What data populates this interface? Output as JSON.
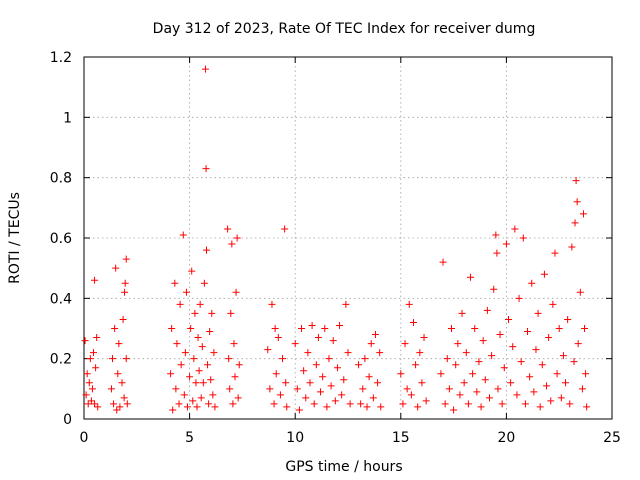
{
  "chart_data": {
    "type": "scatter",
    "title": "Day 312 of 2023, Rate Of TEC Index for receiver dumg",
    "xlabel": "GPS time / hours",
    "ylabel": "ROTI / TECUs",
    "xlim": [
      0,
      25
    ],
    "ylim": [
      0,
      1.2
    ],
    "xticks": [
      0,
      5,
      10,
      15,
      20,
      25
    ],
    "xtick_labels": [
      "0",
      "5",
      "10",
      "15",
      "20",
      "25"
    ],
    "yticks": [
      0,
      0.2,
      0.4,
      0.6,
      0.8,
      1,
      1.2
    ],
    "ytick_labels": [
      "0",
      "0.2",
      "0.4",
      "0.6",
      "0.8",
      "1",
      "1.2"
    ],
    "grid": true,
    "marker": "+",
    "color": "#ff0000",
    "series": [
      {
        "name": "ROTI",
        "points": [
          [
            0.05,
            0.26
          ],
          [
            0.1,
            0.08
          ],
          [
            0.15,
            0.15
          ],
          [
            0.2,
            0.05
          ],
          [
            0.25,
            0.12
          ],
          [
            0.3,
            0.2
          ],
          [
            0.35,
            0.06
          ],
          [
            0.4,
            0.1
          ],
          [
            0.45,
            0.22
          ],
          [
            0.5,
            0.05
          ],
          [
            0.55,
            0.17
          ],
          [
            0.6,
            0.27
          ],
          [
            0.65,
            0.04
          ],
          [
            0.5,
            0.46
          ],
          [
            1.3,
            0.1
          ],
          [
            1.35,
            0.2
          ],
          [
            1.4,
            0.05
          ],
          [
            1.45,
            0.3
          ],
          [
            1.5,
            0.5
          ],
          [
            1.55,
            0.03
          ],
          [
            1.6,
            0.15
          ],
          [
            1.65,
            0.25
          ],
          [
            1.7,
            0.04
          ],
          [
            1.8,
            0.12
          ],
          [
            1.85,
            0.33
          ],
          [
            1.9,
            0.07
          ],
          [
            1.95,
            0.45
          ],
          [
            2.0,
            0.2
          ],
          [
            2.0,
            0.53
          ],
          [
            2.05,
            0.05
          ],
          [
            1.92,
            0.42
          ],
          [
            4.1,
            0.15
          ],
          [
            4.15,
            0.3
          ],
          [
            4.2,
            0.03
          ],
          [
            4.3,
            0.45
          ],
          [
            4.35,
            0.1
          ],
          [
            4.4,
            0.25
          ],
          [
            4.5,
            0.05
          ],
          [
            4.55,
            0.38
          ],
          [
            4.6,
            0.18
          ],
          [
            4.7,
            0.61
          ],
          [
            4.75,
            0.08
          ],
          [
            4.8,
            0.22
          ],
          [
            4.85,
            0.42
          ],
          [
            4.9,
            0.04
          ],
          [
            5.0,
            0.14
          ],
          [
            5.05,
            0.3
          ],
          [
            5.1,
            0.49
          ],
          [
            5.15,
            0.06
          ],
          [
            5.2,
            0.2
          ],
          [
            5.25,
            0.35
          ],
          [
            5.3,
            0.12
          ],
          [
            5.35,
            0.04
          ],
          [
            5.4,
            0.27
          ],
          [
            5.45,
            0.16
          ],
          [
            5.5,
            0.38
          ],
          [
            5.55,
            0.07
          ],
          [
            5.6,
            0.24
          ],
          [
            5.65,
            0.12
          ],
          [
            5.7,
            0.45
          ],
          [
            5.75,
            1.16
          ],
          [
            5.78,
            0.83
          ],
          [
            5.8,
            0.56
          ],
          [
            5.85,
            0.18
          ],
          [
            5.9,
            0.05
          ],
          [
            5.95,
            0.29
          ],
          [
            6.0,
            0.13
          ],
          [
            6.05,
            0.35
          ],
          [
            6.1,
            0.08
          ],
          [
            6.15,
            0.22
          ],
          [
            6.2,
            0.04
          ],
          [
            6.8,
            0.63
          ],
          [
            6.85,
            0.2
          ],
          [
            6.9,
            0.1
          ],
          [
            6.95,
            0.35
          ],
          [
            7.0,
            0.58
          ],
          [
            7.05,
            0.05
          ],
          [
            7.1,
            0.25
          ],
          [
            7.15,
            0.14
          ],
          [
            7.2,
            0.42
          ],
          [
            7.25,
            0.6
          ],
          [
            7.3,
            0.07
          ],
          [
            7.35,
            0.18
          ],
          [
            8.7,
            0.23
          ],
          [
            8.8,
            0.1
          ],
          [
            8.9,
            0.38
          ],
          [
            9.0,
            0.05
          ],
          [
            9.05,
            0.3
          ],
          [
            9.1,
            0.15
          ],
          [
            9.2,
            0.27
          ],
          [
            9.3,
            0.08
          ],
          [
            9.4,
            0.2
          ],
          [
            9.5,
            0.63
          ],
          [
            9.55,
            0.12
          ],
          [
            9.6,
            0.04
          ],
          [
            10.0,
            0.25
          ],
          [
            10.1,
            0.1
          ],
          [
            10.2,
            0.03
          ],
          [
            10.3,
            0.3
          ],
          [
            10.4,
            0.16
          ],
          [
            10.5,
            0.07
          ],
          [
            10.6,
            0.22
          ],
          [
            10.7,
            0.12
          ],
          [
            10.8,
            0.31
          ],
          [
            10.9,
            0.05
          ],
          [
            11.0,
            0.18
          ],
          [
            11.1,
            0.27
          ],
          [
            11.2,
            0.09
          ],
          [
            11.3,
            0.14
          ],
          [
            11.4,
            0.3
          ],
          [
            11.5,
            0.04
          ],
          [
            11.6,
            0.2
          ],
          [
            11.7,
            0.11
          ],
          [
            11.8,
            0.26
          ],
          [
            11.9,
            0.06
          ],
          [
            12.0,
            0.17
          ],
          [
            12.1,
            0.31
          ],
          [
            12.2,
            0.08
          ],
          [
            12.3,
            0.13
          ],
          [
            12.4,
            0.38
          ],
          [
            12.5,
            0.22
          ],
          [
            12.6,
            0.05
          ],
          [
            13.0,
            0.18
          ],
          [
            13.1,
            0.05
          ],
          [
            13.2,
            0.1
          ],
          [
            13.3,
            0.2
          ],
          [
            13.4,
            0.04
          ],
          [
            13.5,
            0.14
          ],
          [
            13.6,
            0.25
          ],
          [
            13.7,
            0.07
          ],
          [
            13.8,
            0.28
          ],
          [
            13.9,
            0.12
          ],
          [
            14.0,
            0.22
          ],
          [
            14.05,
            0.04
          ],
          [
            15.0,
            0.15
          ],
          [
            15.1,
            0.05
          ],
          [
            15.2,
            0.25
          ],
          [
            15.3,
            0.1
          ],
          [
            15.4,
            0.38
          ],
          [
            15.5,
            0.08
          ],
          [
            15.6,
            0.32
          ],
          [
            15.7,
            0.18
          ],
          [
            15.8,
            0.04
          ],
          [
            15.9,
            0.22
          ],
          [
            16.0,
            0.12
          ],
          [
            16.1,
            0.27
          ],
          [
            16.2,
            0.06
          ],
          [
            16.9,
            0.15
          ],
          [
            17.0,
            0.52
          ],
          [
            17.1,
            0.05
          ],
          [
            17.2,
            0.2
          ],
          [
            17.3,
            0.1
          ],
          [
            17.4,
            0.3
          ],
          [
            17.5,
            0.03
          ],
          [
            17.6,
            0.18
          ],
          [
            17.7,
            0.25
          ],
          [
            17.8,
            0.08
          ],
          [
            17.9,
            0.35
          ],
          [
            18.0,
            0.12
          ],
          [
            18.1,
            0.22
          ],
          [
            18.2,
            0.05
          ],
          [
            18.3,
            0.47
          ],
          [
            18.4,
            0.15
          ],
          [
            18.5,
            0.3
          ],
          [
            18.6,
            0.09
          ],
          [
            18.7,
            0.19
          ],
          [
            18.8,
            0.04
          ],
          [
            18.9,
            0.26
          ],
          [
            19.0,
            0.13
          ],
          [
            19.1,
            0.36
          ],
          [
            19.2,
            0.07
          ],
          [
            19.3,
            0.21
          ],
          [
            19.4,
            0.43
          ],
          [
            19.5,
            0.61
          ],
          [
            19.55,
            0.55
          ],
          [
            19.6,
            0.1
          ],
          [
            19.7,
            0.28
          ],
          [
            19.8,
            0.05
          ],
          [
            19.9,
            0.17
          ],
          [
            20.0,
            0.58
          ],
          [
            20.1,
            0.33
          ],
          [
            20.2,
            0.12
          ],
          [
            20.3,
            0.24
          ],
          [
            20.4,
            0.63
          ],
          [
            20.5,
            0.08
          ],
          [
            20.6,
            0.4
          ],
          [
            20.7,
            0.19
          ],
          [
            20.8,
            0.6
          ],
          [
            20.9,
            0.05
          ],
          [
            21.0,
            0.29
          ],
          [
            21.1,
            0.14
          ],
          [
            21.2,
            0.45
          ],
          [
            21.3,
            0.09
          ],
          [
            21.4,
            0.23
          ],
          [
            21.5,
            0.35
          ],
          [
            21.6,
            0.04
          ],
          [
            21.7,
            0.18
          ],
          [
            21.8,
            0.48
          ],
          [
            21.9,
            0.11
          ],
          [
            22.0,
            0.27
          ],
          [
            22.1,
            0.06
          ],
          [
            22.2,
            0.38
          ],
          [
            22.3,
            0.55
          ],
          [
            22.4,
            0.15
          ],
          [
            22.5,
            0.3
          ],
          [
            22.6,
            0.07
          ],
          [
            22.7,
            0.21
          ],
          [
            22.8,
            0.12
          ],
          [
            22.9,
            0.33
          ],
          [
            23.0,
            0.05
          ],
          [
            23.1,
            0.57
          ],
          [
            23.2,
            0.19
          ],
          [
            23.25,
            0.65
          ],
          [
            23.3,
            0.79
          ],
          [
            23.35,
            0.72
          ],
          [
            23.4,
            0.25
          ],
          [
            23.5,
            0.42
          ],
          [
            23.6,
            0.1
          ],
          [
            23.65,
            0.68
          ],
          [
            23.7,
            0.3
          ],
          [
            23.75,
            0.15
          ],
          [
            23.8,
            0.04
          ]
        ]
      }
    ]
  }
}
